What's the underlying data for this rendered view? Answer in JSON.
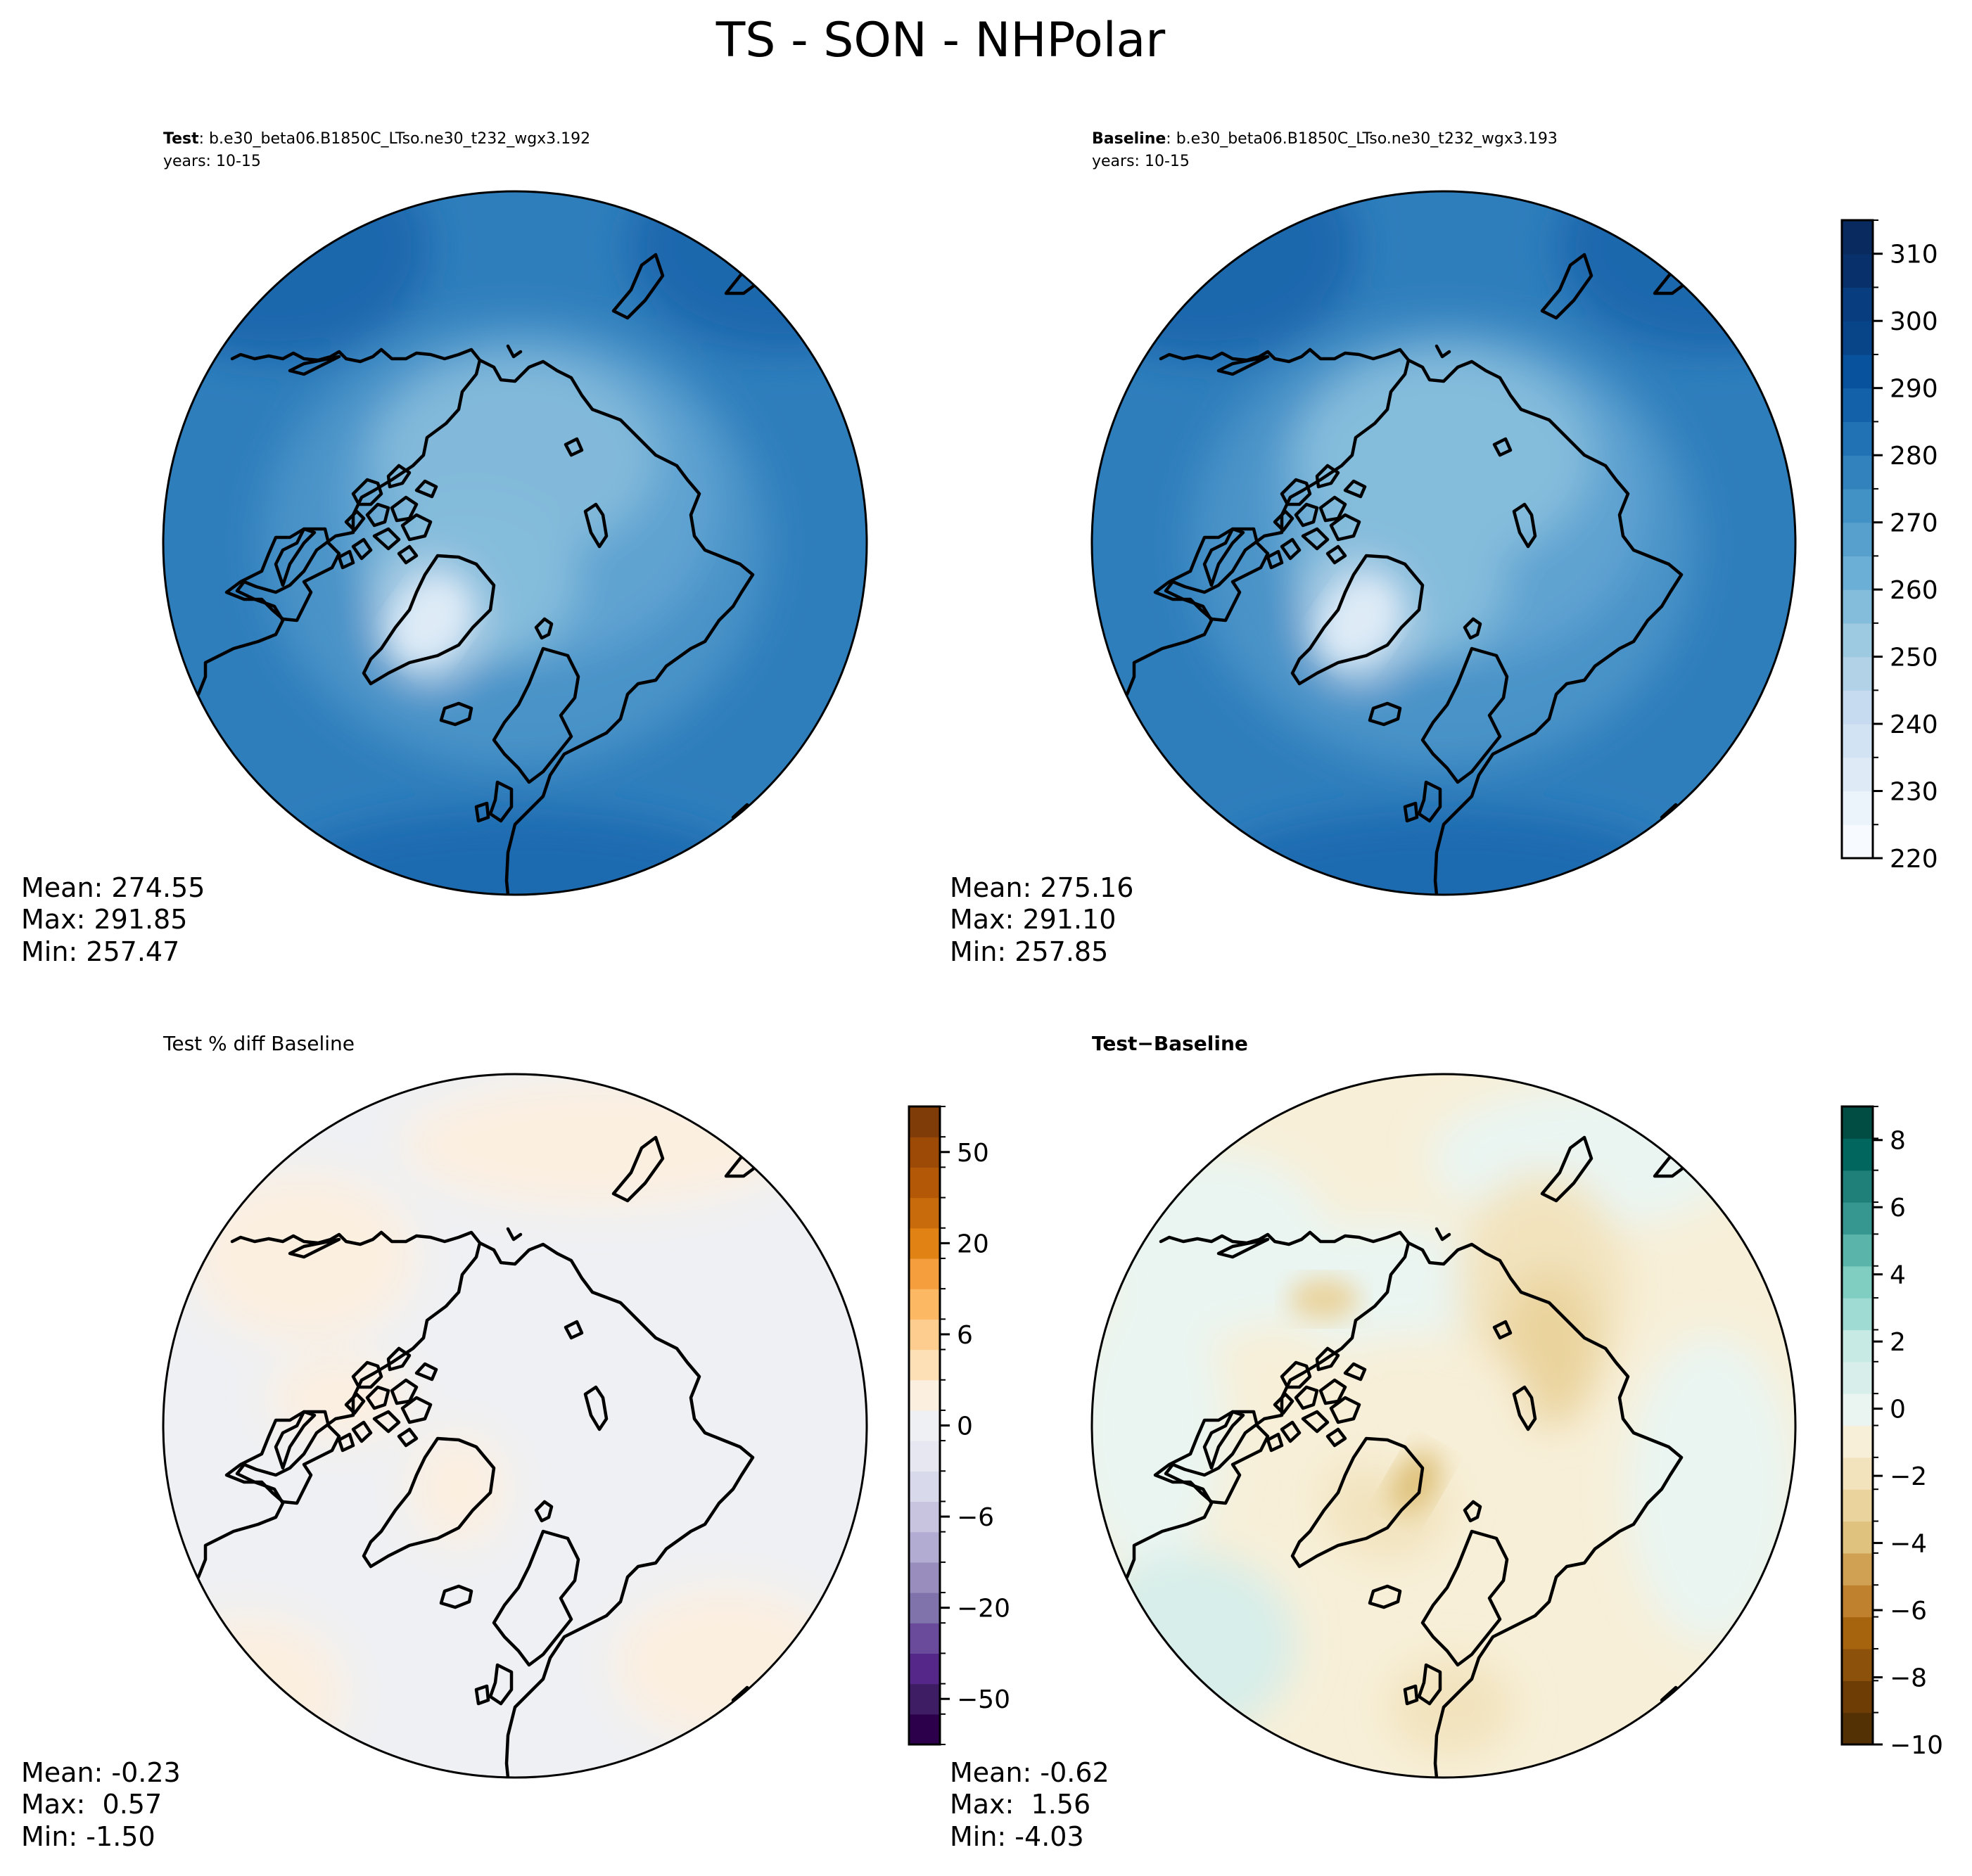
{
  "figure": {
    "title": "TS - SON - NHPolar"
  },
  "panels": [
    {
      "id": "test",
      "header_bold": "Test",
      "header_rest": ": b.e30_beta06.B1850C_LTso.ne30_t232_wgx3.192",
      "years": "years: 10-15",
      "stats": [
        "Mean: 274.55",
        "Max: 291.85",
        "Min: 257.47"
      ],
      "field": "absolute"
    },
    {
      "id": "baseline",
      "header_bold": "Baseline",
      "header_rest": ": b.e30_beta06.B1850C_LTso.ne30_t232_wgx3.193",
      "years": "years: 10-15",
      "stats": [
        "Mean: 275.16",
        "Max: 291.10",
        "Min: 257.85"
      ],
      "field": "absolute"
    },
    {
      "id": "pctdiff",
      "header_bold": "",
      "header_rest": "Test % diff Baseline",
      "years": "",
      "stats": [
        "Mean: -0.23",
        "Max:  0.57",
        "Min: -1.50"
      ],
      "field": "percent"
    },
    {
      "id": "diff",
      "header_bold": "Test",
      "header_rest": "−Baseline",
      "header_rest_bold": true,
      "years": "",
      "stats": [
        "Mean: -0.62",
        "Max:  1.56",
        "Min: -4.03"
      ],
      "field": "difference"
    }
  ],
  "colorbars": {
    "absolute": {
      "colormap": "Blues",
      "levels": [
        220,
        225,
        230,
        235,
        240,
        245,
        250,
        255,
        260,
        265,
        270,
        275,
        280,
        285,
        290,
        295,
        300,
        305,
        310,
        315
      ],
      "ticks": [
        "220",
        "230",
        "240",
        "250",
        "260",
        "270",
        "280",
        "290",
        "300",
        "310"
      ],
      "colors": [
        "#f7fbff",
        "#ebf3fb",
        "#deebf7",
        "#d2e3f3",
        "#c6dbef",
        "#b2d2e8",
        "#9ecae1",
        "#84bcdb",
        "#6baed6",
        "#57a0ce",
        "#4292c6",
        "#3282be",
        "#2171b5",
        "#1361a9",
        "#08519c",
        "#084488",
        "#083e80",
        "#08306b",
        "#082a5e"
      ]
    },
    "percent": {
      "colormap": "PuOr_r",
      "ticks": [
        "−50",
        "−20",
        "−6",
        "0",
        "6",
        "20",
        "50"
      ],
      "colors": [
        "#2d004b",
        "#3f1d64",
        "#542788",
        "#6a4a9b",
        "#8073ac",
        "#998dbd",
        "#b2abd2",
        "#c8c3df",
        "#d8daeb",
        "#e6e7f1",
        "#eff0f3",
        "#fbefe0",
        "#fee0b6",
        "#fdcd8f",
        "#fdb863",
        "#f49e3d",
        "#e08214",
        "#c86b0c",
        "#b35806",
        "#9c4a06",
        "#7f3b08"
      ]
    },
    "difference": {
      "colormap": "BrBG",
      "ticks": [
        "−10",
        "−8",
        "−6",
        "−4",
        "−2",
        "0",
        "2",
        "4",
        "6",
        "8"
      ],
      "colors": [
        "#543005",
        "#6e3d06",
        "#8c510a",
        "#a6640f",
        "#bf812d",
        "#d1a153",
        "#dfc27d",
        "#ead39c",
        "#f2e3bd",
        "#f7efd8",
        "#eaf5f2",
        "#d7eeea",
        "#c7eae5",
        "#9fdbd2",
        "#80cdc1",
        "#5ab4a9",
        "#35978f",
        "#1f8079",
        "#01665e",
        "#014d43"
      ]
    }
  }
}
